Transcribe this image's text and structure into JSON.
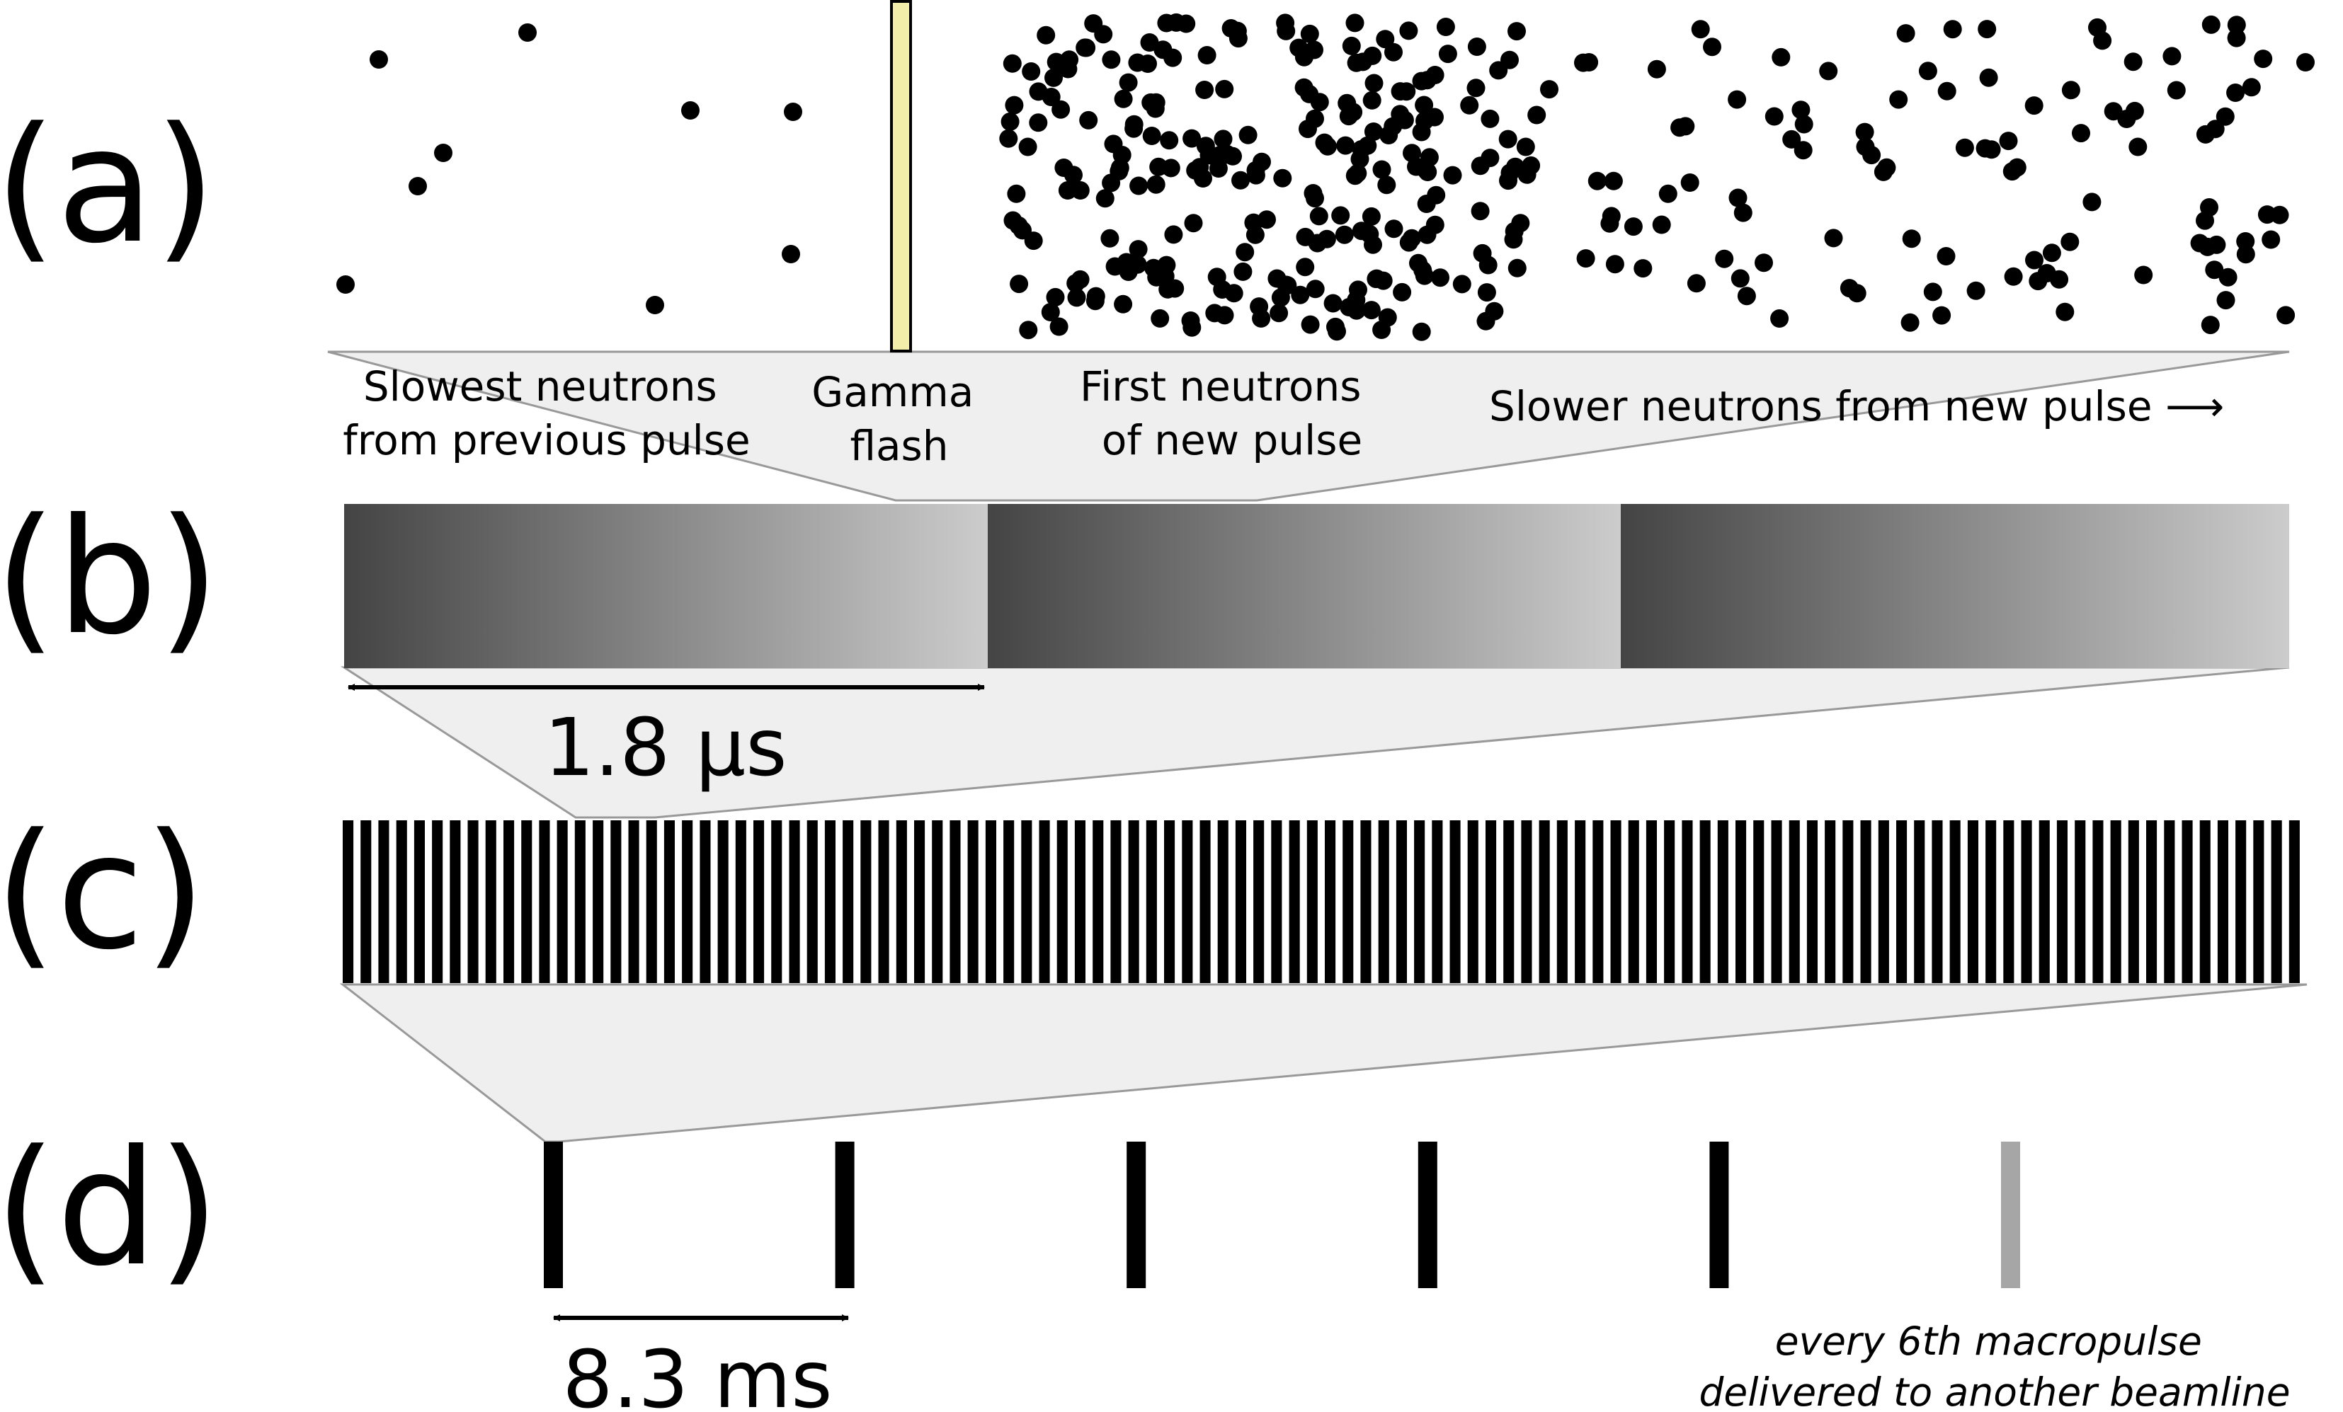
{
  "panels": {
    "a": {
      "label": "(a)",
      "captions": {
        "slowest": [
          "Slowest neutrons",
          "from previous pulse"
        ],
        "gamma": [
          "Gamma",
          "flash"
        ],
        "first": [
          "First neutrons",
          "of new pulse"
        ],
        "slower": "Slower neutrons from new pulse ⟶"
      }
    },
    "b": {
      "label": "(b)",
      "interval": "1.8 μs",
      "segment_count": 3
    },
    "c": {
      "label": "(c)",
      "pulse_count": 110
    },
    "d": {
      "label": "(d)",
      "interval": "8.3 ms",
      "note": [
        "every 6th macropulse",
        "delivered to another beamline"
      ],
      "macropulse_count": 6,
      "diverted_index": 6
    }
  },
  "colors": {
    "dot": "#000000",
    "gamma_flash": "#f2eeaa",
    "zoom_fill": "#efefef",
    "zoom_stroke": "#999999",
    "gradient_dark": "#444444",
    "gradient_light": "#cccccc",
    "diverted_pulse": "#a6a6a6"
  }
}
